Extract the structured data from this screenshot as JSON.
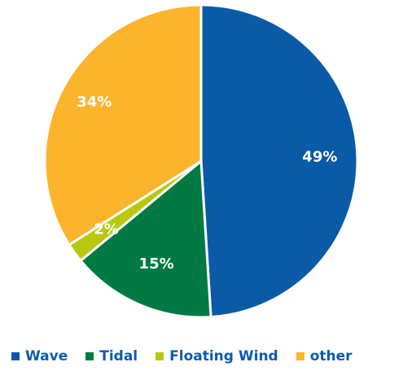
{
  "chart_data": {
    "type": "pie",
    "title": "",
    "slices": [
      {
        "name": "Wave",
        "value": 49,
        "label": "49%",
        "color": "#0a5aa8"
      },
      {
        "name": "Tidal",
        "value": 15,
        "label": "15%",
        "color": "#007a42"
      },
      {
        "name": "Floating Wind",
        "value": 2,
        "label": "2%",
        "color": "#b7c80f"
      },
      {
        "name": "other",
        "value": 34,
        "label": "34%",
        "color": "#fbb42c"
      }
    ],
    "legend": {
      "placement": "bottom",
      "text_color": "#0b5cab"
    }
  }
}
